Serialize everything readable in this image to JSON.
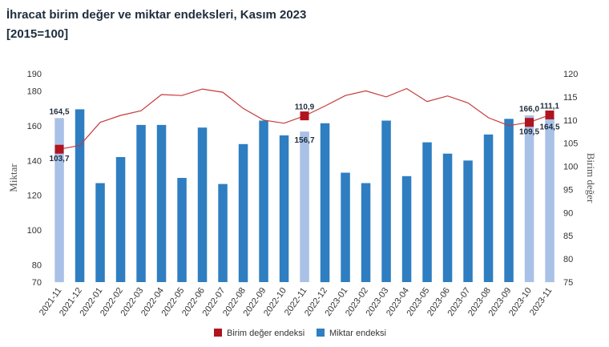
{
  "header": {
    "title": "İhracat birim değer ve miktar endeksleri, Kasım 2023",
    "subtitle": "[2015=100]"
  },
  "colors": {
    "bar": "#2e7ec1",
    "bar_highlight": "#a9c1e6",
    "line": "#c63a3a",
    "marker": "#b0141e"
  },
  "chart_data": {
    "type": "bar",
    "categories": [
      "2021-11",
      "2021-12",
      "2022-01",
      "2022-02",
      "2022-03",
      "2022-04",
      "2022-05",
      "2022-06",
      "2022-07",
      "2022-08",
      "2022-09",
      "2022-10",
      "2022-11",
      "2022-12",
      "2023-01",
      "2023-02",
      "2023-03",
      "2023-04",
      "2023-05",
      "2023-06",
      "2023-07",
      "2023-08",
      "2023-09",
      "2023-10",
      "2023-11"
    ],
    "highlighted_categories": [
      "2021-11",
      "2022-11",
      "2023-10",
      "2023-11"
    ],
    "series": [
      {
        "name": "Miktar endeksi",
        "type": "bar",
        "axis": "left",
        "values": [
          164.5,
          169.5,
          127,
          142,
          160.5,
          160.5,
          130,
          159,
          126.5,
          149.5,
          163,
          154.5,
          156.7,
          161.5,
          133,
          127,
          163,
          131,
          150.5,
          144,
          140,
          155,
          164,
          166.0,
          164.5
        ]
      },
      {
        "name": "Birim değer endeksi",
        "type": "line",
        "axis": "right",
        "values": [
          103.7,
          104.5,
          109.5,
          111,
          112,
          115.5,
          115.3,
          116.7,
          116,
          112.5,
          110,
          109.3,
          110.9,
          113,
          115.3,
          116.3,
          115,
          116.8,
          114,
          115.2,
          113.7,
          110.5,
          108.8,
          109.5,
          111.1
        ]
      }
    ],
    "data_labels": [
      {
        "category": "2021-11",
        "series": "Miktar endeksi",
        "text": "164,5"
      },
      {
        "category": "2021-11",
        "series": "Birim değer endeksi",
        "text": "103,7"
      },
      {
        "category": "2022-11",
        "series": "Birim değer endeksi",
        "text": "110,9"
      },
      {
        "category": "2022-11",
        "series": "Miktar endeksi",
        "text": "156,7"
      },
      {
        "category": "2023-10",
        "series": "Miktar endeksi",
        "text": "166,0"
      },
      {
        "category": "2023-10",
        "series": "Birim değer endeksi",
        "text": "109,5"
      },
      {
        "category": "2023-11",
        "series": "Birim değer endeksi",
        "text": "111,1"
      },
      {
        "category": "2023-11",
        "series": "Miktar endeksi",
        "text": "164,5"
      }
    ],
    "left_axis": {
      "label": "Miktar",
      "range": [
        70,
        190
      ],
      "ticks": [
        "190",
        "180",
        "160",
        "140",
        "120",
        "100",
        "80",
        "70"
      ]
    },
    "right_axis": {
      "label": "Birim değer",
      "range": [
        75,
        120
      ],
      "ticks": [
        "120",
        "115",
        "110",
        "105",
        "100",
        "95",
        "90",
        "85",
        "80",
        "75"
      ]
    },
    "legend": {
      "position": "bottom",
      "items": [
        {
          "label": "Birim değer endeksi",
          "series": "Birim değer endeksi"
        },
        {
          "label": "Miktar endeksi",
          "series": "Miktar endeksi"
        }
      ]
    },
    "grid": false
  }
}
